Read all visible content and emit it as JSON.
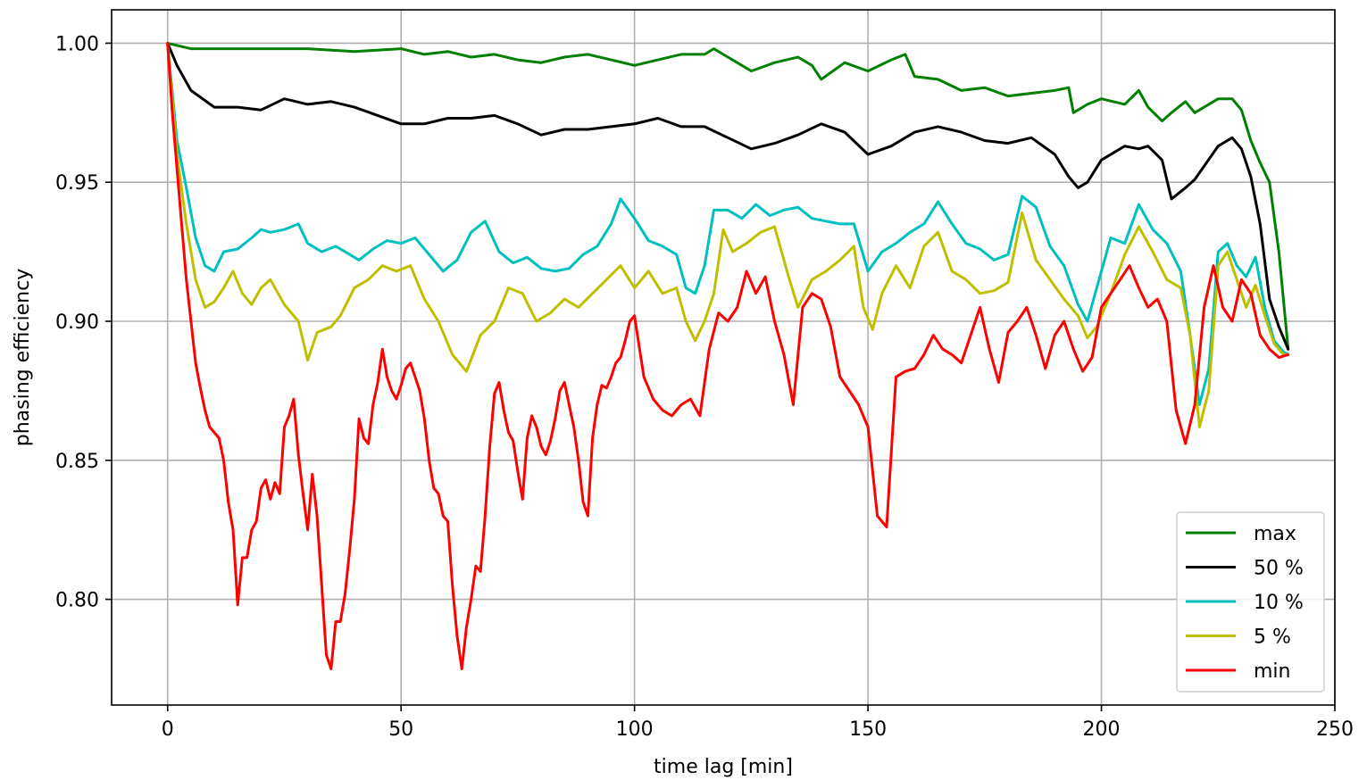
{
  "chart_data": {
    "type": "line",
    "title": "",
    "xlabel": "time lag [min]",
    "ylabel": "phasing efficiency",
    "xlim": [
      -12,
      250
    ],
    "ylim": [
      0.762,
      1.012
    ],
    "xticks": [
      0,
      50,
      100,
      150,
      200,
      250
    ],
    "yticks": [
      0.8,
      0.85,
      0.9,
      0.95,
      1.0
    ],
    "xtick_labels": [
      "0",
      "50",
      "100",
      "150",
      "200",
      "250"
    ],
    "ytick_labels": [
      "0.80",
      "0.85",
      "0.90",
      "0.95",
      "1.00"
    ],
    "grid": true,
    "legend_position": "bottom-right",
    "series": [
      {
        "name": "max",
        "color": "#008000",
        "x": [
          0,
          5,
          10,
          20,
          30,
          40,
          50,
          55,
          60,
          65,
          70,
          75,
          80,
          85,
          90,
          95,
          100,
          105,
          110,
          115,
          117,
          120,
          125,
          130,
          135,
          138,
          140,
          145,
          150,
          155,
          158,
          160,
          165,
          170,
          175,
          180,
          185,
          190,
          193,
          194,
          197,
          200,
          205,
          208,
          210,
          213,
          215,
          218,
          220,
          225,
          228,
          230,
          232,
          234,
          236,
          238,
          240
        ],
        "y": [
          1.0,
          0.998,
          0.998,
          0.998,
          0.998,
          0.997,
          0.998,
          0.996,
          0.997,
          0.995,
          0.996,
          0.994,
          0.993,
          0.995,
          0.996,
          0.994,
          0.992,
          0.994,
          0.996,
          0.996,
          0.998,
          0.995,
          0.99,
          0.993,
          0.995,
          0.992,
          0.987,
          0.993,
          0.99,
          0.994,
          0.996,
          0.988,
          0.987,
          0.983,
          0.984,
          0.981,
          0.982,
          0.983,
          0.984,
          0.975,
          0.978,
          0.98,
          0.978,
          0.983,
          0.977,
          0.972,
          0.975,
          0.979,
          0.975,
          0.98,
          0.98,
          0.976,
          0.965,
          0.957,
          0.95,
          0.925,
          0.89
        ]
      },
      {
        "name": "50 %",
        "color": "#000000",
        "x": [
          0,
          2,
          5,
          10,
          15,
          20,
          25,
          30,
          35,
          40,
          45,
          50,
          55,
          60,
          65,
          70,
          75,
          80,
          85,
          90,
          95,
          100,
          105,
          110,
          115,
          120,
          125,
          130,
          135,
          140,
          145,
          150,
          155,
          160,
          165,
          170,
          175,
          180,
          185,
          190,
          193,
          195,
          197,
          200,
          205,
          208,
          210,
          213,
          215,
          218,
          220,
          225,
          228,
          230,
          232,
          234,
          236,
          238,
          240
        ],
        "y": [
          1.0,
          0.992,
          0.983,
          0.977,
          0.977,
          0.976,
          0.98,
          0.978,
          0.979,
          0.977,
          0.974,
          0.971,
          0.971,
          0.973,
          0.973,
          0.974,
          0.971,
          0.967,
          0.969,
          0.969,
          0.97,
          0.971,
          0.973,
          0.97,
          0.97,
          0.966,
          0.962,
          0.964,
          0.967,
          0.971,
          0.968,
          0.96,
          0.963,
          0.968,
          0.97,
          0.968,
          0.965,
          0.964,
          0.966,
          0.96,
          0.952,
          0.948,
          0.95,
          0.958,
          0.963,
          0.962,
          0.963,
          0.958,
          0.944,
          0.948,
          0.951,
          0.963,
          0.966,
          0.962,
          0.952,
          0.935,
          0.908,
          0.898,
          0.89
        ]
      },
      {
        "name": "10 %",
        "color": "#00bfbf",
        "x": [
          0,
          2,
          4,
          6,
          8,
          10,
          12,
          15,
          18,
          20,
          22,
          25,
          28,
          30,
          33,
          36,
          38,
          41,
          44,
          47,
          50,
          53,
          56,
          59,
          62,
          65,
          68,
          71,
          74,
          77,
          80,
          83,
          86,
          89,
          92,
          95,
          97,
          100,
          103,
          106,
          109,
          111,
          113,
          115,
          117,
          120,
          123,
          126,
          129,
          132,
          135,
          138,
          141,
          144,
          147,
          150,
          153,
          156,
          159,
          162,
          165,
          168,
          171,
          174,
          177,
          180,
          183,
          186,
          189,
          192,
          195,
          197,
          199,
          202,
          205,
          208,
          211,
          214,
          217,
          219,
          221,
          223,
          225,
          227,
          229,
          231,
          233,
          235,
          237,
          239,
          240
        ],
        "y": [
          1.0,
          0.965,
          0.948,
          0.93,
          0.92,
          0.918,
          0.925,
          0.926,
          0.93,
          0.933,
          0.932,
          0.933,
          0.935,
          0.928,
          0.925,
          0.927,
          0.925,
          0.922,
          0.926,
          0.929,
          0.928,
          0.93,
          0.924,
          0.918,
          0.922,
          0.932,
          0.936,
          0.925,
          0.921,
          0.923,
          0.919,
          0.918,
          0.919,
          0.924,
          0.927,
          0.935,
          0.944,
          0.937,
          0.929,
          0.927,
          0.924,
          0.912,
          0.91,
          0.92,
          0.94,
          0.94,
          0.937,
          0.942,
          0.938,
          0.94,
          0.941,
          0.937,
          0.936,
          0.935,
          0.935,
          0.918,
          0.925,
          0.928,
          0.932,
          0.935,
          0.943,
          0.935,
          0.928,
          0.926,
          0.922,
          0.924,
          0.945,
          0.941,
          0.927,
          0.92,
          0.906,
          0.9,
          0.912,
          0.93,
          0.928,
          0.942,
          0.933,
          0.928,
          0.918,
          0.895,
          0.87,
          0.883,
          0.925,
          0.928,
          0.92,
          0.916,
          0.923,
          0.905,
          0.893,
          0.889,
          0.888
        ]
      },
      {
        "name": "5 %",
        "color": "#bfbf00",
        "x": [
          0,
          2,
          4,
          6,
          8,
          10,
          12,
          14,
          16,
          18,
          20,
          22,
          25,
          28,
          30,
          32,
          35,
          37,
          40,
          43,
          46,
          49,
          52,
          55,
          58,
          61,
          64,
          67,
          70,
          73,
          76,
          79,
          82,
          85,
          88,
          91,
          94,
          97,
          100,
          103,
          106,
          109,
          111,
          113,
          115,
          117,
          119,
          121,
          124,
          127,
          130,
          133,
          135,
          138,
          141,
          144,
          147,
          149,
          151,
          153,
          156,
          159,
          162,
          165,
          168,
          171,
          174,
          177,
          180,
          183,
          186,
          189,
          192,
          195,
          197,
          199,
          202,
          205,
          208,
          211,
          214,
          217,
          219,
          221,
          223,
          225,
          227,
          229,
          231,
          233,
          235,
          237,
          239,
          240
        ],
        "y": [
          1.0,
          0.96,
          0.935,
          0.915,
          0.905,
          0.907,
          0.912,
          0.918,
          0.91,
          0.906,
          0.912,
          0.915,
          0.906,
          0.9,
          0.886,
          0.896,
          0.898,
          0.902,
          0.912,
          0.915,
          0.92,
          0.918,
          0.92,
          0.908,
          0.9,
          0.888,
          0.882,
          0.895,
          0.9,
          0.912,
          0.91,
          0.9,
          0.903,
          0.908,
          0.905,
          0.91,
          0.915,
          0.92,
          0.912,
          0.918,
          0.91,
          0.912,
          0.9,
          0.893,
          0.9,
          0.91,
          0.933,
          0.925,
          0.928,
          0.932,
          0.934,
          0.916,
          0.905,
          0.915,
          0.918,
          0.922,
          0.927,
          0.905,
          0.897,
          0.91,
          0.92,
          0.912,
          0.927,
          0.932,
          0.918,
          0.915,
          0.91,
          0.911,
          0.914,
          0.939,
          0.922,
          0.915,
          0.908,
          0.902,
          0.894,
          0.898,
          0.91,
          0.924,
          0.934,
          0.925,
          0.915,
          0.912,
          0.895,
          0.862,
          0.875,
          0.92,
          0.925,
          0.915,
          0.905,
          0.913,
          0.902,
          0.892,
          0.888,
          0.888
        ]
      },
      {
        "name": "min",
        "color": "#ff0000",
        "x": [
          0,
          1,
          2,
          3,
          4,
          5,
          6,
          7,
          8,
          9,
          10,
          11,
          12,
          13,
          14,
          15,
          16,
          17,
          18,
          19,
          20,
          21,
          22,
          23,
          24,
          25,
          26,
          27,
          28,
          29,
          30,
          31,
          32,
          33,
          34,
          35,
          36,
          37,
          38,
          39,
          40,
          41,
          42,
          43,
          44,
          45,
          46,
          47,
          48,
          49,
          50,
          51,
          52,
          53,
          54,
          55,
          56,
          57,
          58,
          59,
          60,
          61,
          62,
          63,
          64,
          65,
          66,
          67,
          68,
          69,
          70,
          71,
          72,
          73,
          74,
          75,
          76,
          77,
          78,
          79,
          80,
          81,
          82,
          83,
          84,
          85,
          86,
          87,
          88,
          89,
          90,
          91,
          92,
          93,
          94,
          95,
          96,
          97,
          98,
          99,
          100,
          102,
          104,
          106,
          108,
          110,
          112,
          114,
          116,
          118,
          120,
          122,
          124,
          126,
          128,
          130,
          132,
          134,
          136,
          138,
          140,
          142,
          144,
          146,
          148,
          150,
          152,
          154,
          156,
          158,
          160,
          162,
          164,
          166,
          168,
          170,
          172,
          174,
          176,
          178,
          180,
          182,
          184,
          186,
          188,
          190,
          192,
          194,
          196,
          198,
          200,
          202,
          204,
          206,
          208,
          210,
          212,
          214,
          216,
          218,
          220,
          222,
          224,
          226,
          228,
          230,
          232,
          234,
          236,
          238,
          240
        ],
        "y": [
          1.0,
          0.975,
          0.955,
          0.935,
          0.915,
          0.9,
          0.885,
          0.876,
          0.868,
          0.862,
          0.86,
          0.858,
          0.85,
          0.835,
          0.825,
          0.798,
          0.815,
          0.815,
          0.825,
          0.828,
          0.84,
          0.843,
          0.836,
          0.842,
          0.838,
          0.862,
          0.866,
          0.872,
          0.852,
          0.838,
          0.825,
          0.845,
          0.83,
          0.805,
          0.78,
          0.775,
          0.792,
          0.792,
          0.802,
          0.818,
          0.836,
          0.865,
          0.858,
          0.856,
          0.87,
          0.878,
          0.89,
          0.88,
          0.875,
          0.872,
          0.877,
          0.883,
          0.885,
          0.88,
          0.875,
          0.865,
          0.85,
          0.84,
          0.838,
          0.83,
          0.828,
          0.805,
          0.787,
          0.775,
          0.79,
          0.8,
          0.812,
          0.81,
          0.83,
          0.855,
          0.874,
          0.878,
          0.868,
          0.86,
          0.857,
          0.846,
          0.836,
          0.858,
          0.866,
          0.862,
          0.855,
          0.852,
          0.857,
          0.865,
          0.875,
          0.878,
          0.87,
          0.862,
          0.85,
          0.835,
          0.83,
          0.858,
          0.87,
          0.877,
          0.876,
          0.88,
          0.885,
          0.887,
          0.893,
          0.9,
          0.902,
          0.88,
          0.872,
          0.868,
          0.866,
          0.87,
          0.872,
          0.866,
          0.89,
          0.903,
          0.9,
          0.905,
          0.918,
          0.91,
          0.916,
          0.9,
          0.888,
          0.87,
          0.905,
          0.91,
          0.908,
          0.898,
          0.88,
          0.875,
          0.87,
          0.862,
          0.83,
          0.826,
          0.88,
          0.882,
          0.883,
          0.888,
          0.895,
          0.89,
          0.888,
          0.885,
          0.895,
          0.905,
          0.89,
          0.878,
          0.896,
          0.9,
          0.905,
          0.895,
          0.883,
          0.895,
          0.9,
          0.89,
          0.882,
          0.887,
          0.905,
          0.91,
          0.915,
          0.92,
          0.912,
          0.905,
          0.908,
          0.9,
          0.868,
          0.856,
          0.87,
          0.905,
          0.92,
          0.905,
          0.9,
          0.915,
          0.91,
          0.895,
          0.89,
          0.887,
          0.888
        ]
      }
    ]
  }
}
